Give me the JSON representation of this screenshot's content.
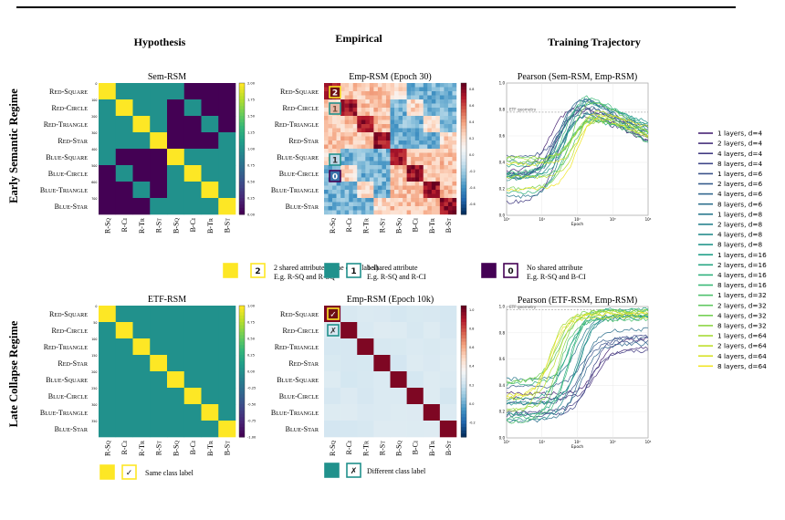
{
  "headers": {
    "hypothesis": "Hypothesis",
    "empirical": "Empirical",
    "trajectory": "Training Trajectory"
  },
  "regimes": {
    "early": "Early Semantic Regime",
    "late": "Late Collapse Regime"
  },
  "row_labels": [
    "RED_SQUARE",
    "RED_CIRCLE",
    "RED_TRIANGLE",
    "RED_STAR",
    "BLUE_SQUARE",
    "BLUE_CIRCLE",
    "BLUE_TRIANGLE",
    "BLUE_STAR"
  ],
  "col_labels": [
    "R-SQ",
    "R-CI",
    "R-TR",
    "R-ST",
    "B-SQ",
    "B-CI",
    "B-TR",
    "B-ST"
  ],
  "panels": {
    "sem_rsm": {
      "title": "Sem-RSM",
      "colorbar_ticks": [
        "2.00",
        "1.75",
        "1.50",
        "1.25",
        "1.00",
        "0.75",
        "0.50",
        "0.25",
        "0.00"
      ]
    },
    "emp_rsm_30": {
      "title": "Emp-RSM (Epoch 30)",
      "badges": [
        "2",
        "1",
        "1",
        "0"
      ]
    },
    "pearson_sem": {
      "title": "Pearson (Sem-RSM, Emp-RSM)",
      "etf_label": "ETF geometry",
      "yticks": [
        "1.0",
        "0.8",
        "0.6",
        "0.4",
        "0.2",
        "0.0"
      ],
      "xticks": [
        "10⁰",
        "10¹",
        "10²",
        "10³",
        "10⁴"
      ],
      "xlabel": "Epoch"
    },
    "etf_rsm": {
      "title": "ETF-RSM",
      "colorbar_ticks": [
        "1.00",
        "0.75",
        "0.50",
        "0.25",
        "0.00",
        "-0.25",
        "-0.50",
        "-0.75",
        "-1.00"
      ]
    },
    "emp_rsm_10k": {
      "title": "Emp-RSM (Epoch 10k)",
      "badges": [
        "✓",
        "✗"
      ]
    },
    "pearson_etf": {
      "title": "Pearson (ETF-RSM, Emp-RSM)",
      "etf_label": "ETF geometry",
      "yticks": [
        "1.0",
        "0.8",
        "0.6",
        "0.4",
        "0.2",
        "0.0"
      ],
      "xticks": [
        "10⁰",
        "10¹",
        "10²",
        "10³",
        "10⁴"
      ],
      "xlabel": "Epoch"
    }
  },
  "legends": {
    "early": [
      {
        "badge": "2",
        "text": "2 shared attribute (same class label)",
        "example": "E.g. R-SQ and R-SQ"
      },
      {
        "badge": "1",
        "text": "1 shared attribute",
        "example": "E.g. R-SQ and R-CI"
      },
      {
        "badge": "0",
        "text": "No shared attribute",
        "example": "E.g. R-SQ and B-CI"
      }
    ],
    "late": [
      {
        "badge": "✓",
        "text": "Same class label"
      },
      {
        "badge": "✗",
        "text": "Different class label"
      }
    ]
  },
  "series_legend": [
    "1 layers, d=4",
    "2 layers, d=4",
    "4 layers, d=4",
    "8 layers, d=4",
    "1 layers, d=6",
    "2 layers, d=6",
    "4 layers, d=6",
    "8 layers, d=6",
    "1 layers, d=8",
    "2 layers, d=8",
    "4 layers, d=8",
    "8 layers, d=8",
    "1 layers, d=16",
    "2 layers, d=16",
    "4 layers, d=16",
    "8 layers, d=16",
    "1 layers, d=32",
    "2 layers, d=32",
    "4 layers, d=32",
    "8 layers, d=32",
    "1 layers, d=64",
    "2 layers, d=64",
    "4 layers, d=64",
    "8 layers, d=64"
  ],
  "colors": {
    "yellow": "#fde725",
    "teal": "#21918c",
    "purple": "#440154",
    "darkred": "#8b0d1c"
  },
  "chart_data": [
    {
      "type": "heatmap",
      "panel": "sem_rsm",
      "rule": "shared attributes between classes (0,1,2)",
      "values": [
        [
          2,
          1,
          1,
          1,
          1,
          0,
          0,
          0
        ],
        [
          1,
          2,
          1,
          1,
          0,
          1,
          0,
          0
        ],
        [
          1,
          1,
          2,
          1,
          0,
          0,
          1,
          0
        ],
        [
          1,
          1,
          1,
          2,
          0,
          0,
          0,
          1
        ],
        [
          1,
          0,
          0,
          0,
          2,
          1,
          1,
          1
        ],
        [
          0,
          1,
          0,
          0,
          1,
          2,
          1,
          1
        ],
        [
          0,
          0,
          1,
          0,
          1,
          1,
          2,
          1
        ],
        [
          0,
          0,
          0,
          1,
          1,
          1,
          1,
          2
        ]
      ],
      "vmin": 0,
      "vmax": 2
    },
    {
      "type": "heatmap",
      "panel": "etf_rsm",
      "values": "identity (1 on diagonal, ~0 elsewhere)",
      "vmin": -1,
      "vmax": 1
    },
    {
      "type": "line",
      "panel": "pearson_sem",
      "xscale": "log",
      "xlim": [
        1,
        10000
      ],
      "ylim": [
        0,
        1
      ],
      "xlabel": "Epoch",
      "ylabel": "",
      "series_count": 24
    },
    {
      "type": "line",
      "panel": "pearson_etf",
      "xscale": "log",
      "xlim": [
        1,
        10000
      ],
      "ylim": [
        0,
        1
      ],
      "xlabel": "Epoch",
      "ylabel": "",
      "series_count": 24
    }
  ]
}
